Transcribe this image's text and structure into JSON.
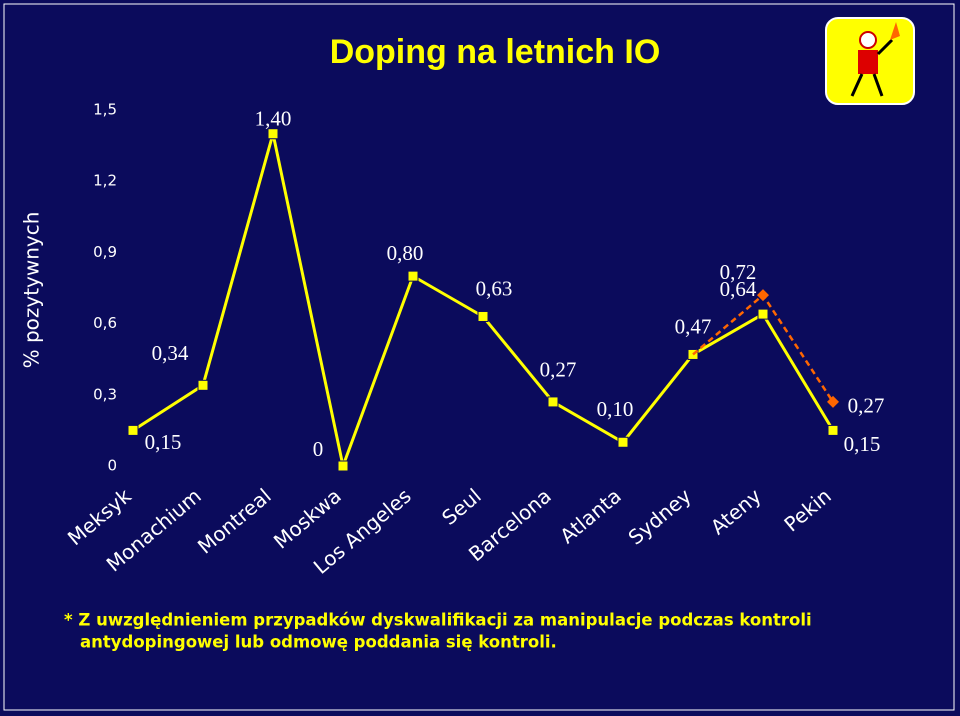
{
  "chart_data": {
    "type": "line",
    "title": "Doping na letnich IO",
    "y_label": "% pozytywnych",
    "categories": [
      "Meksyk",
      "Monachium",
      "Montreal",
      "Moskwa",
      "Los Angeles",
      "Seul",
      "Barcelona",
      "Atlanta",
      "Sydney",
      "Ateny",
      "Pekin"
    ],
    "series": [
      {
        "color": "#ffff00",
        "values": [
          0.15,
          0.34,
          1.4,
          0,
          0.8,
          0.63,
          0.27,
          0.1,
          0.47,
          0.64,
          0.15
        ],
        "value_labels": [
          "0,15",
          "0,34",
          "1,40",
          "0",
          "0,80",
          "0,63",
          "0,27",
          "0,10",
          "0,47",
          "0,64",
          "0,15"
        ]
      },
      {
        "color": "#ff6600",
        "values": [
          null,
          null,
          null,
          null,
          null,
          null,
          null,
          null,
          0.47,
          0.72,
          0.27
        ],
        "value_labels": [
          null,
          null,
          null,
          null,
          null,
          null,
          null,
          null,
          null,
          "0,72",
          "0,27"
        ]
      }
    ],
    "ylim": [
      0,
      1.5
    ],
    "yticks": [
      0,
      {
        "value": 0.3,
        "label": "0,3"
      },
      {
        "value": 0.6,
        "label": "0,6"
      },
      {
        "value": 0.9,
        "label": "0,9"
      },
      {
        "value": 1.2,
        "label": "1,2"
      },
      {
        "value": 1.5,
        "label": "1,5"
      }
    ],
    "footnote": [
      "* Z uwzględnieniem przypadków dyskwalifikacji za manipulacje podczas kontroli",
      "antydopingowej lub odmowę poddania się kontroli."
    ]
  }
}
